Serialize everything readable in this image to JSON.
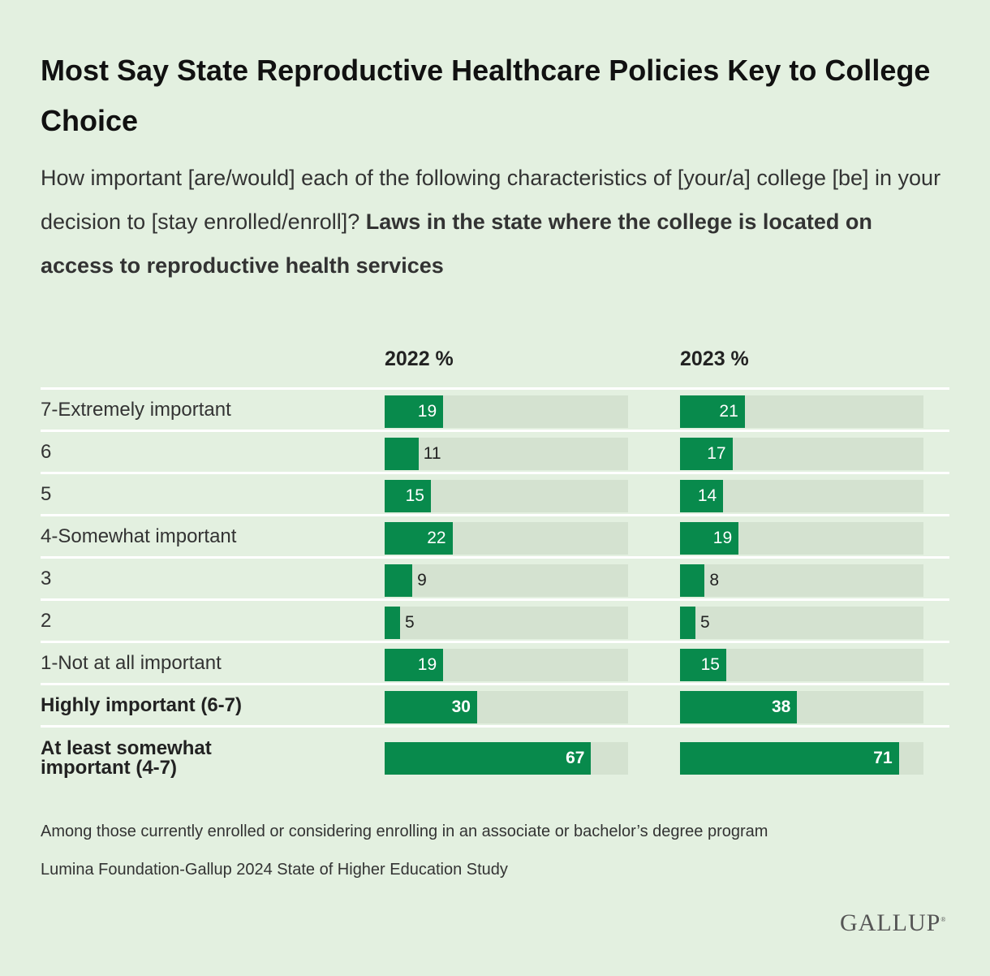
{
  "title": "Most Say State Reproductive Healthcare Policies Key to College Choice",
  "subtitle_plain": "How important [are/would] each of the following characteristics of [your/a] college [be] in your decision to [stay enrolled/enroll]?",
  "subtitle_bold": "Laws in the state where the college is located on access to reproductive health services",
  "footnote": "Among those currently enrolled or considering enrolling in an associate or bachelor’s degree program",
  "source": "Lumina Foundation-Gallup 2024 State of Higher Education Study",
  "logo": "GALLUP",
  "colors": {
    "bar": "#088a4c",
    "track": "#d4e2d0",
    "background": "#e3f0e0"
  },
  "chart_data": {
    "type": "bar",
    "title": "Most Say State Reproductive Healthcare Policies Key to College Choice",
    "categories": [
      "7-Extremely important",
      "6",
      "5",
      "4-Somewhat important",
      "3",
      "2",
      "1-Not at all important",
      "Highly important (6-7)",
      "At least somewhat important (4-7)"
    ],
    "bold": [
      false,
      false,
      false,
      false,
      false,
      false,
      false,
      true,
      true
    ],
    "series": [
      {
        "name": "2022 %",
        "values": [
          19,
          11,
          15,
          22,
          9,
          5,
          19,
          30,
          67
        ]
      },
      {
        "name": "2023 %",
        "values": [
          21,
          17,
          14,
          19,
          8,
          5,
          15,
          38,
          71
        ]
      }
    ],
    "xlim": [
      0,
      79
    ]
  }
}
